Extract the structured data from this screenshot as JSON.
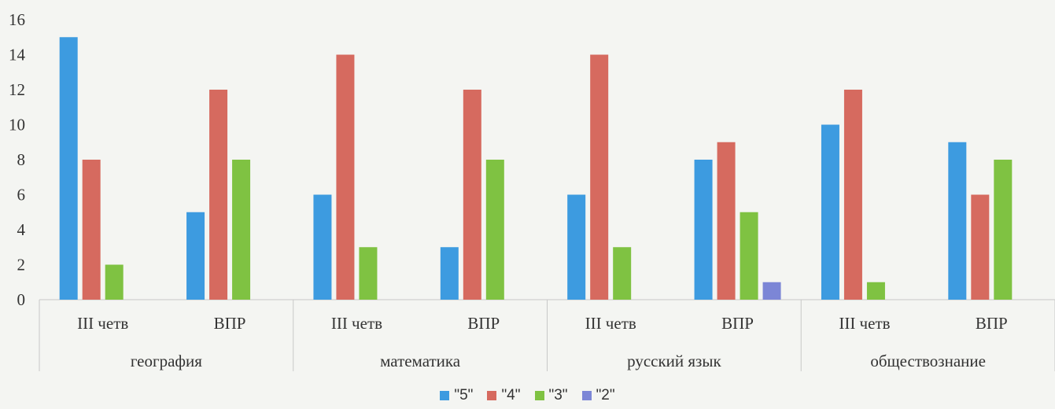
{
  "chart_data": {
    "type": "bar",
    "groups": [
      {
        "label": "география",
        "subcategories": [
          "III четв",
          "ВПР"
        ]
      },
      {
        "label": "математика",
        "subcategories": [
          "III четв",
          "ВПР"
        ]
      },
      {
        "label": "русский язык",
        "subcategories": [
          "III четв",
          "ВПР"
        ]
      },
      {
        "label": "обществознание",
        "subcategories": [
          "III четв",
          "ВПР"
        ]
      }
    ],
    "series": [
      {
        "name": "\"5\"",
        "color": "#3d9be0",
        "values": [
          15,
          5,
          6,
          3,
          6,
          8,
          10,
          9
        ]
      },
      {
        "name": "\"4\"",
        "color": "#d66a5f",
        "values": [
          8,
          12,
          14,
          12,
          14,
          9,
          12,
          6
        ]
      },
      {
        "name": "\"3\"",
        "color": "#7fc242",
        "values": [
          2,
          8,
          3,
          8,
          3,
          5,
          1,
          8
        ]
      },
      {
        "name": "\"2\"",
        "color": "#7c86d6",
        "values": [
          0,
          0,
          0,
          0,
          0,
          1,
          0,
          0
        ]
      }
    ],
    "yticks": [
      0,
      2,
      4,
      6,
      8,
      10,
      12,
      14,
      16
    ],
    "ylim": [
      0,
      16
    ],
    "grid": false,
    "legend_position": "bottom"
  }
}
